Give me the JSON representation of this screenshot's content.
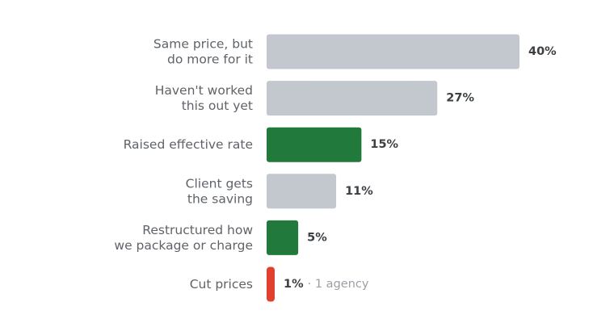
{
  "chart_data": {
    "type": "bar",
    "orientation": "horizontal",
    "title": "",
    "xlabel": "",
    "ylabel": "",
    "xlim": [
      0,
      40
    ],
    "grid": false,
    "legend": "none",
    "unit": "%",
    "categories": [
      [
        "Same price, but",
        "do more for it"
      ],
      [
        "Haven't worked",
        "this out yet"
      ],
      [
        "Raised effective rate"
      ],
      [
        "Client gets",
        "the saving"
      ],
      [
        "Restructured how",
        "we package or charge"
      ],
      [
        "Cut prices"
      ]
    ],
    "values": [
      40,
      27,
      15,
      11,
      5,
      1
    ],
    "value_labels": [
      "40%",
      "27%",
      "15%",
      "11%",
      "5%",
      "1%"
    ],
    "notes": [
      "",
      "",
      "",
      "",
      "",
      "· 1 agency"
    ],
    "bar_colors": [
      "#c3c8ce",
      "#c3c8ce",
      "#217a3c",
      "#c3c8ce",
      "#217a3c",
      "#e0412f"
    ]
  }
}
